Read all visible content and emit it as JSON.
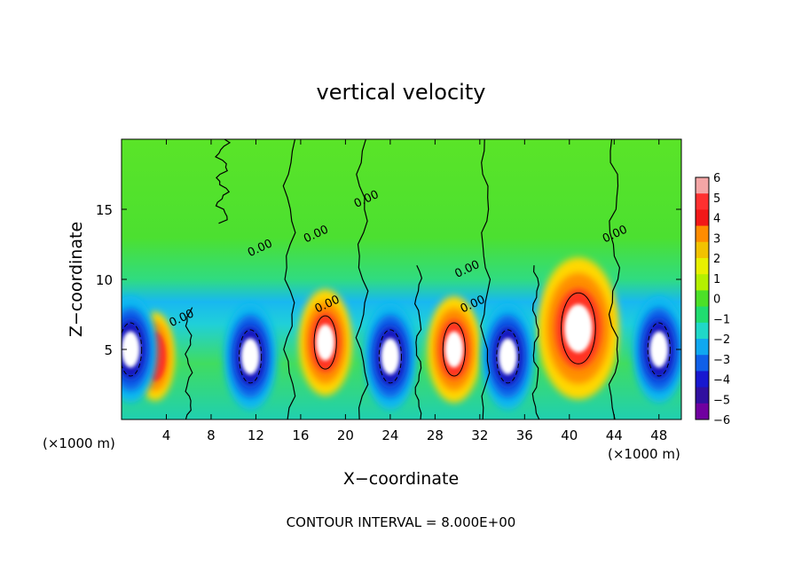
{
  "chart_data": {
    "type": "heatmap",
    "title": "vertical velocity",
    "xlabel": "X−coordinate",
    "ylabel": "Z−coordinate",
    "x_unit_left": "(×1000 m)",
    "x_unit_right": "(×1000 m)",
    "xlim": [
      0,
      50
    ],
    "ylim": [
      0,
      20
    ],
    "x_ticks": [
      4,
      8,
      12,
      16,
      20,
      24,
      28,
      32,
      36,
      40,
      44,
      48
    ],
    "y_ticks": [
      5,
      10,
      15
    ],
    "contour_interval_text": "CONTOUR INTERVAL = 8.000E+00",
    "contour_labels": [
      "0.00",
      "0.00",
      "0.00",
      "0.00",
      "0.00",
      "0.00",
      "0.00",
      "0.00"
    ],
    "colorbar": {
      "levels": [
        "6",
        "5",
        "4",
        "3",
        "2",
        "1",
        "0",
        "−1",
        "−2",
        "−3",
        "−4",
        "−5",
        "−6"
      ],
      "colors": [
        "#f4a6a6",
        "#ff3030",
        "#f21818",
        "#ff8c00",
        "#f2c200",
        "#e8f000",
        "#b4f000",
        "#4ce028",
        "#20dc70",
        "#20d8c8",
        "#10a8f0",
        "#1060e8",
        "#1818d0",
        "#3010a0",
        "#7000a0"
      ]
    },
    "features": [
      {
        "kind": "updraft_core",
        "x": 18.2,
        "z": 5.5,
        "peak": 8
      },
      {
        "kind": "updraft_core",
        "x": 29.7,
        "z": 5.0,
        "peak": 8
      },
      {
        "kind": "updraft_core",
        "x": 40.8,
        "z": 6.5,
        "peak": 10
      },
      {
        "kind": "updraft",
        "x": 3.0,
        "z": 4.5,
        "peak": 4
      },
      {
        "kind": "downdraft_core",
        "x": 11.5,
        "z": 4.5,
        "peak": -8
      },
      {
        "kind": "downdraft_core",
        "x": 24.0,
        "z": 4.5,
        "peak": -8
      },
      {
        "kind": "downdraft_core",
        "x": 34.5,
        "z": 4.5,
        "peak": -8
      },
      {
        "kind": "downdraft_core",
        "x": 48.0,
        "z": 5.0,
        "peak": -8
      },
      {
        "kind": "downdraft_core",
        "x": 0.8,
        "z": 5.0,
        "peak": -7
      }
    ]
  }
}
